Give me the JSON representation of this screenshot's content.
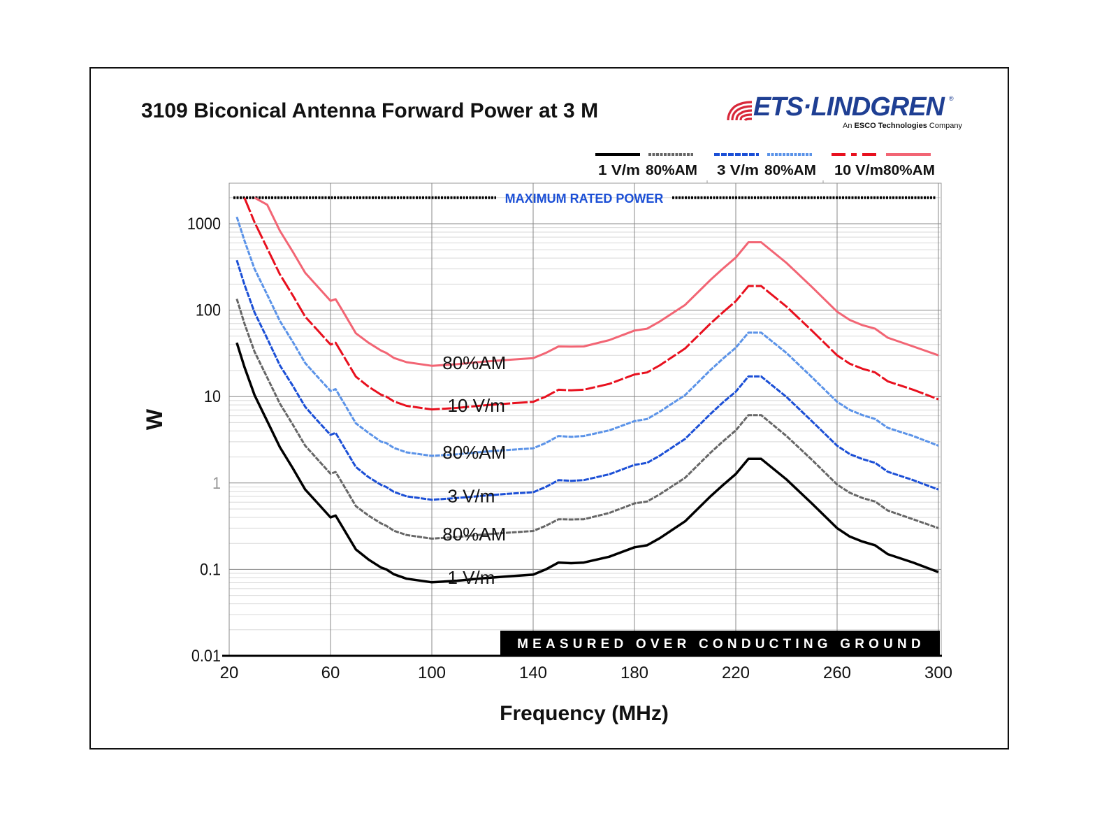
{
  "chart_data": {
    "type": "line",
    "title": "3109 Biconical Antenna Forward Power at 3 M",
    "xlabel": "Frequency (MHz)",
    "ylabel": "W",
    "xlim": [
      20,
      300
    ],
    "ylim": [
      0.01,
      2500
    ],
    "yscale": "log",
    "x_ticks": [
      "20",
      "60",
      "100",
      "140",
      "180",
      "220",
      "260",
      "300"
    ],
    "y_ticks": [
      "1000",
      "100",
      "10",
      "1",
      "0.1",
      "0.01"
    ],
    "grid": true,
    "legend_position": "top-right",
    "x": [
      23,
      26,
      30,
      35,
      40,
      45,
      50,
      55,
      60,
      62,
      65,
      70,
      75,
      80,
      82,
      85,
      90,
      100,
      110,
      120,
      130,
      140,
      145,
      150,
      155,
      160,
      170,
      180,
      185,
      190,
      200,
      210,
      215,
      220,
      225,
      230,
      240,
      250,
      260,
      265,
      270,
      275,
      280,
      290,
      300
    ],
    "series": [
      {
        "name": "1 V/m",
        "color": "#000000",
        "style": "solid",
        "values": [
          42,
          22,
          10.4,
          5.2,
          2.6,
          1.5,
          0.84,
          0.58,
          0.4,
          0.42,
          0.3,
          0.17,
          0.13,
          0.105,
          0.1,
          0.088,
          0.078,
          0.071,
          0.074,
          0.079,
          0.083,
          0.087,
          0.1,
          0.12,
          0.118,
          0.12,
          0.14,
          0.18,
          0.19,
          0.23,
          0.36,
          0.7,
          0.95,
          1.27,
          1.9,
          1.9,
          1.1,
          0.58,
          0.3,
          0.24,
          0.21,
          0.19,
          0.15,
          0.12,
          0.093
        ]
      },
      {
        "name": "80%AM (1 V/m)",
        "color": "#666666",
        "style": "dotted",
        "values": [
          135,
          70,
          33,
          16.6,
          8.3,
          4.8,
          2.7,
          1.86,
          1.28,
          1.34,
          0.96,
          0.54,
          0.42,
          0.34,
          0.32,
          0.28,
          0.25,
          0.227,
          0.237,
          0.253,
          0.266,
          0.278,
          0.32,
          0.38,
          0.378,
          0.38,
          0.45,
          0.58,
          0.61,
          0.74,
          1.15,
          2.24,
          3.04,
          4.06,
          6.1,
          6.1,
          3.5,
          1.86,
          0.96,
          0.77,
          0.67,
          0.61,
          0.48,
          0.38,
          0.3
        ]
      },
      {
        "name": "3 V/m",
        "color": "#1b4fd6",
        "style": "dashed",
        "values": [
          378,
          198,
          94,
          47,
          23,
          13.5,
          7.6,
          5.2,
          3.6,
          3.8,
          2.7,
          1.53,
          1.17,
          0.95,
          0.9,
          0.79,
          0.7,
          0.64,
          0.67,
          0.71,
          0.75,
          0.78,
          0.9,
          1.08,
          1.06,
          1.08,
          1.26,
          1.62,
          1.71,
          2.07,
          3.24,
          6.3,
          8.6,
          11.4,
          17.1,
          17.1,
          9.9,
          5.2,
          2.7,
          2.16,
          1.89,
          1.71,
          1.35,
          1.08,
          0.84
        ]
      },
      {
        "name": "80%AM (3 V/m)",
        "color": "#5b93e8",
        "style": "dotted",
        "values": [
          1200,
          640,
          300,
          151,
          75,
          43.5,
          24.4,
          16.8,
          11.6,
          12.2,
          8.7,
          4.9,
          3.8,
          3.0,
          2.9,
          2.55,
          2.26,
          2.06,
          2.15,
          2.29,
          2.41,
          2.52,
          2.9,
          3.5,
          3.42,
          3.5,
          4.06,
          5.2,
          5.5,
          6.7,
          10.4,
          20.3,
          27.6,
          36.8,
          55,
          55,
          32,
          16.8,
          8.7,
          7.0,
          6.1,
          5.5,
          4.35,
          3.5,
          2.7
        ]
      },
      {
        "name": "10 V/m",
        "color": "#e8101e",
        "style": "dash-dot",
        "values": [
          2000,
          2000,
          1040,
          520,
          260,
          150,
          84,
          58,
          40,
          42,
          30,
          17,
          13,
          10.5,
          10,
          8.8,
          7.8,
          7.1,
          7.4,
          7.9,
          8.3,
          8.7,
          10,
          12,
          11.8,
          12,
          14,
          18,
          19,
          23,
          36,
          70,
          95,
          127,
          190,
          190,
          110,
          58,
          30,
          24,
          21,
          19,
          15,
          12,
          9.3
        ]
      },
      {
        "name": "80%AM (10 V/m)",
        "color": "#f26574",
        "style": "solid",
        "values": [
          2000,
          2000,
          2000,
          1660,
          830,
          480,
          270,
          186,
          128,
          134,
          96,
          54,
          42,
          34,
          32,
          28,
          25,
          22.7,
          23.7,
          25.3,
          26.6,
          27.8,
          32,
          38,
          37.8,
          38,
          45,
          58,
          61,
          74,
          115,
          224,
          304,
          406,
          610,
          610,
          352,
          186,
          96,
          77,
          67,
          61,
          48,
          38,
          30
        ]
      }
    ],
    "reference_lines": [
      {
        "label": "MAXIMUM RATED POWER",
        "value": 2000,
        "color": "#000000",
        "label_color": "#1b4fd6"
      }
    ],
    "annotations": [
      {
        "text": "80%AM",
        "x": 118,
        "y": 25
      },
      {
        "text": "10 V/m",
        "x": 120,
        "y": 8
      },
      {
        "text": "80%AM",
        "x": 118,
        "y": 2.3
      },
      {
        "text": "3 V/m",
        "x": 120,
        "y": 0.72
      },
      {
        "text": "80%AM",
        "x": 118,
        "y": 0.26
      },
      {
        "text": "1 V/m",
        "x": 120,
        "y": 0.082
      },
      {
        "text": "MEASURED OVER CONDUCTING GROUND",
        "position": "bottom-right",
        "style": "white-on-black"
      }
    ]
  },
  "legend": [
    {
      "label": "1 V/m",
      "color": "#000000",
      "style": "solid"
    },
    {
      "label": "80%AM",
      "color": "#666666",
      "style": "dotted"
    },
    {
      "label": "3 V/m",
      "color": "#1b4fd6",
      "style": "dashed"
    },
    {
      "label": "80%AM",
      "color": "#5b93e8",
      "style": "dotted"
    },
    {
      "label": "10 V/m",
      "color": "#e8101e",
      "style": "dash-dot"
    },
    {
      "label": "80%AM",
      "color": "#f26574",
      "style": "solid"
    }
  ],
  "logo": {
    "name": "ETS·LINDGREN",
    "reg": "®",
    "tagline_prefix": "An ",
    "tagline_bold": "ESCO Technologies",
    "tagline_suffix": " Company",
    "brand_color": "#1f3f93",
    "accent_color": "#d8283a"
  }
}
